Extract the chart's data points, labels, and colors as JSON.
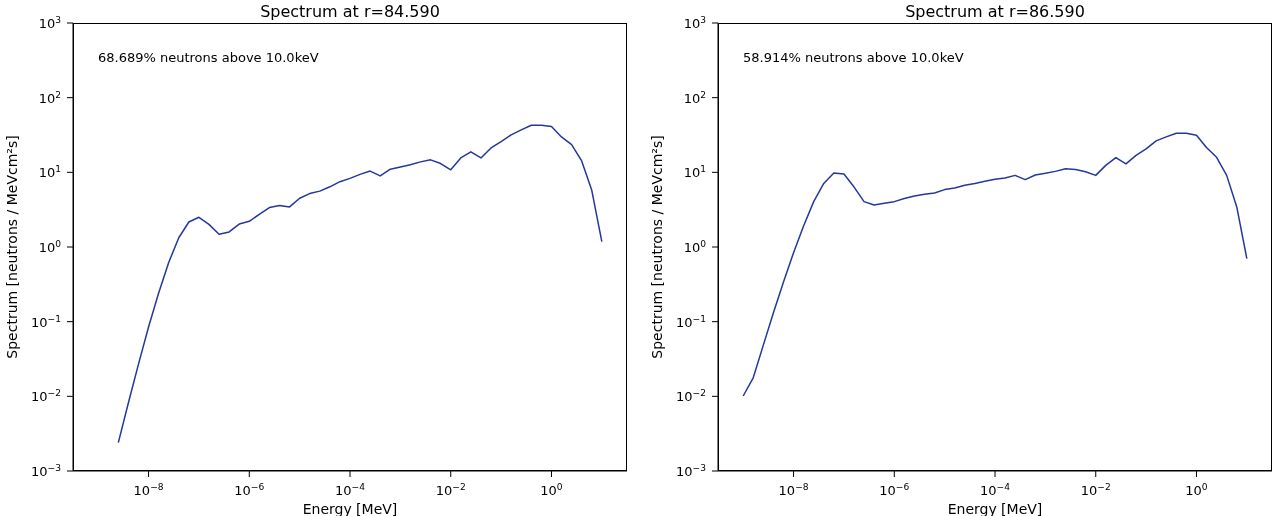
{
  "chart_data": [
    {
      "type": "line",
      "title": "Spectrum at r=84.590",
      "xlabel": "Energy [MeV]",
      "ylabel": "Spectrum [neutrons / MeVcm²s]",
      "annotations": [
        "68.689% neutrons above 10.0keV"
      ],
      "log": "xy",
      "marker": "none",
      "xlim": [
        3.16e-10,
        31.6
      ],
      "ylim": [
        0.001,
        1000
      ],
      "xticks": [
        {
          "value": 1e-08,
          "label": "10$^{−8}$"
        },
        {
          "value": 1e-06,
          "label": "10$^{−6}$"
        },
        {
          "value": 0.0001,
          "label": "10$^{−4}$"
        },
        {
          "value": 0.01,
          "label": "10$^{−2}$"
        },
        {
          "value": 1,
          "label": "10$^{0}$"
        }
      ],
      "yticks": [
        {
          "value": 0.001,
          "label": "10$^{−3}$"
        },
        {
          "value": 0.01,
          "label": "10$^{−2}$"
        },
        {
          "value": 0.1,
          "label": "10$^{−1}$"
        },
        {
          "value": 1,
          "label": "10$^{0}$"
        },
        {
          "value": 10,
          "label": "10$^{1}$"
        },
        {
          "value": 100,
          "label": "10$^{2}$"
        },
        {
          "value": 1000,
          "label": "10$^{3}$"
        }
      ],
      "series": [
        {
          "color": "#24389c",
          "x": [
            2.51e-09,
            3.98e-09,
            6.31e-09,
            1e-08,
            1.58e-08,
            2.51e-08,
            3.98e-08,
            6.31e-08,
            1e-07,
            1.58e-07,
            2.51e-07,
            3.98e-07,
            6.31e-07,
            1e-06,
            1.58e-06,
            2.51e-06,
            3.98e-06,
            6.31e-06,
            1e-05,
            1.58e-05,
            2.51e-05,
            3.98e-05,
            6.31e-05,
            0.0001,
            0.000158,
            0.000251,
            0.000398,
            0.000631,
            0.001,
            0.00158,
            0.00251,
            0.00398,
            0.00631,
            0.01,
            0.0158,
            0.0251,
            0.0398,
            0.0631,
            0.1,
            0.158,
            0.251,
            0.398,
            0.631,
            1,
            1.58,
            2.51,
            3.98,
            6.31,
            10
          ],
          "values": [
            0.0024,
            0.0082,
            0.027,
            0.085,
            0.24,
            0.62,
            1.33,
            2.16,
            2.5,
            2.01,
            1.48,
            1.59,
            2.03,
            2.21,
            2.74,
            3.37,
            3.6,
            3.44,
            4.49,
            5.19,
            5.6,
            6.4,
            7.5,
            8.3,
            9.4,
            10.4,
            8.95,
            11.0,
            11.8,
            12.6,
            13.8,
            14.7,
            13.1,
            10.8,
            15.6,
            18.8,
            15.6,
            21.2,
            25.8,
            31.7,
            37.0,
            42.7,
            42.7,
            41.0,
            29.8,
            23.5,
            14.2,
            5.75,
            1.18
          ]
        }
      ]
    },
    {
      "type": "line",
      "title": "Spectrum at r=86.590",
      "xlabel": "Energy [MeV]",
      "ylabel": "Spectrum [neutrons / MeVcm²s]",
      "annotations": [
        "58.914% neutrons above 10.0keV"
      ],
      "log": "xy",
      "marker": "none",
      "xlim": [
        3.16e-10,
        31.6
      ],
      "ylim": [
        0.001,
        1000
      ],
      "xticks": [
        {
          "value": 1e-08,
          "label": "10$^{−8}$"
        },
        {
          "value": 1e-06,
          "label": "10$^{−6}$"
        },
        {
          "value": 0.0001,
          "label": "10$^{−4}$"
        },
        {
          "value": 0.01,
          "label": "10$^{−2}$"
        },
        {
          "value": 1,
          "label": "10$^{0}$"
        }
      ],
      "yticks": [
        {
          "value": 0.001,
          "label": "10$^{−3}$"
        },
        {
          "value": 0.01,
          "label": "10$^{−2}$"
        },
        {
          "value": 0.1,
          "label": "10$^{−1}$"
        },
        {
          "value": 1,
          "label": "10$^{0}$"
        },
        {
          "value": 10,
          "label": "10$^{1}$"
        },
        {
          "value": 100,
          "label": "10$^{2}$"
        },
        {
          "value": 1000,
          "label": "10$^{3}$"
        }
      ],
      "series": [
        {
          "color": "#24389c",
          "x": [
            1e-09,
            1.58e-09,
            2.51e-09,
            3.98e-09,
            6.31e-09,
            1e-08,
            1.58e-08,
            2.51e-08,
            3.98e-08,
            6.31e-08,
            1e-07,
            1.58e-07,
            2.51e-07,
            3.98e-07,
            6.31e-07,
            1e-06,
            1.58e-06,
            2.51e-06,
            3.98e-06,
            6.31e-06,
            1e-05,
            1.58e-05,
            2.51e-05,
            3.98e-05,
            6.31e-05,
            0.0001,
            0.000158,
            0.000251,
            0.000398,
            0.000631,
            0.001,
            0.00158,
            0.00251,
            0.00398,
            0.00631,
            0.01,
            0.0158,
            0.0251,
            0.0398,
            0.0631,
            0.1,
            0.158,
            0.251,
            0.398,
            0.631,
            1,
            1.58,
            2.51,
            3.98,
            6.31,
            10
          ],
          "values": [
            0.0101,
            0.0177,
            0.0485,
            0.132,
            0.34,
            0.84,
            1.91,
            4.05,
            7.1,
            9.8,
            9.5,
            6.4,
            4.05,
            3.66,
            3.85,
            4.05,
            4.45,
            4.83,
            5.08,
            5.3,
            5.87,
            6.18,
            6.7,
            7.1,
            7.6,
            8.1,
            8.4,
            9.1,
            8.0,
            9.2,
            9.7,
            10.3,
            11.2,
            10.9,
            10.2,
            9.1,
            12.4,
            15.7,
            13.0,
            16.9,
            20.6,
            26.4,
            29.8,
            33.4,
            33.4,
            31.4,
            21.5,
            15.9,
            9.1,
            3.44,
            0.7
          ]
        }
      ]
    }
  ]
}
